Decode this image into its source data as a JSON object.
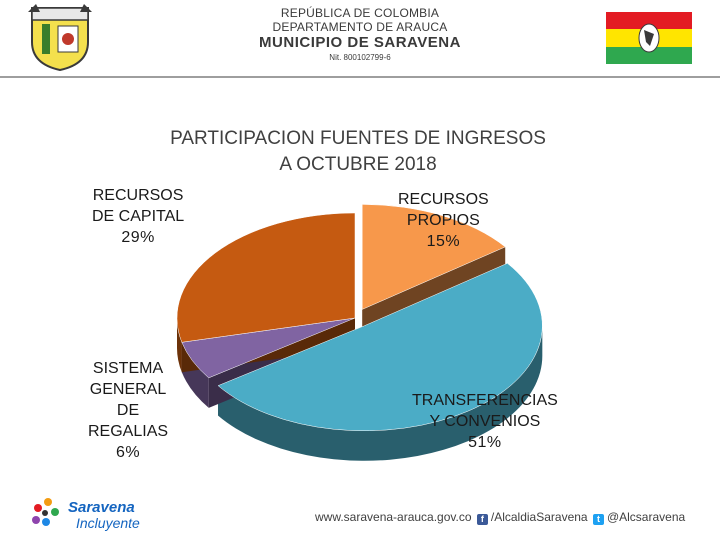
{
  "header": {
    "line1": "REPÚBLICA DE COLOMBIA",
    "line2": "DEPARTAMENTO DE ARAUCA",
    "line3": "MUNICIPIO DE SARAVENA",
    "line4": "Nit. 800102799-6",
    "flag_colors": [
      "#e31b23",
      "#ffe500",
      "#2fa84f"
    ]
  },
  "chart_data": {
    "type": "pie",
    "title_line1": "PARTICIPACION FUENTES DE INGRESOS",
    "title_line2": "A OCTUBRE 2018",
    "slices": [
      {
        "label": "RECURSOS PROPIOS",
        "value": 15,
        "pct_label": "15%",
        "color": "#f7984b",
        "exploded": true
      },
      {
        "label": "TRANSFERENCIAS Y CONVENIOS",
        "value": 51,
        "pct_label": "51%",
        "color": "#4bacc6",
        "exploded": true
      },
      {
        "label": "SISTEMA GENERAL DE REGALIAS",
        "value": 6,
        "pct_label": "6%",
        "color": "#8064a2",
        "exploded": false
      },
      {
        "label": "RECURSOS DE CAPITAL",
        "value": 29,
        "pct_label": "29%",
        "color": "#c55a11",
        "exploded": false
      }
    ]
  },
  "labels": {
    "capital": [
      "RECURSOS",
      "DE CAPITAL",
      "29%"
    ],
    "propios": [
      "RECURSOS",
      "PROPIOS",
      "15%"
    ],
    "regalias": [
      "SISTEMA",
      "GENERAL",
      "DE",
      "REGALIAS",
      "6%"
    ],
    "transferencias": [
      "TRANSFERENCIAS",
      "Y CONVENIOS",
      "51%"
    ]
  },
  "footer": {
    "logo_line1": "Saravena",
    "logo_line2": "Incluyente",
    "website": "www.saravena-arauca.gov.co",
    "facebook": "/AlcaldiaSaravena",
    "twitter": "@Alcsaravena"
  }
}
